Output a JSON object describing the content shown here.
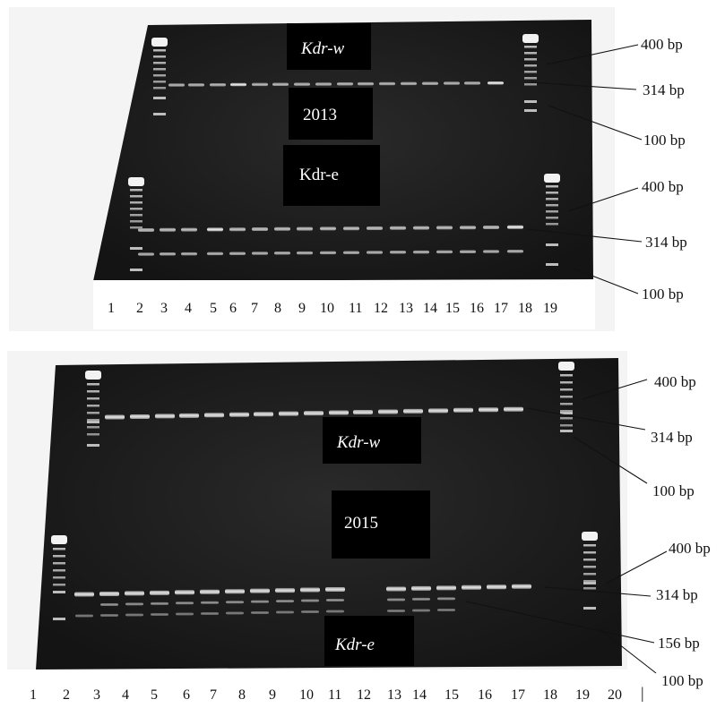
{
  "panels": [
    {
      "id": "panel-2013",
      "year": "2013",
      "wild_label": {
        "prefix": "Kdr",
        "suffix": "-w"
      },
      "mut_label": {
        "prefix": "Kdr",
        "suffix": "-e"
      },
      "marker_labels": [
        "400 bp",
        "314 bp",
        "100 bp",
        "400 bp",
        "314 bp",
        "100 bp"
      ],
      "lane_numbers": [
        "1",
        "2",
        "3",
        "4",
        "5",
        "6",
        "7",
        "8",
        "9",
        "10",
        "11",
        "12",
        "13",
        "14",
        "15",
        "16",
        "17",
        "18",
        "19"
      ],
      "extra_mark": ""
    },
    {
      "id": "panel-2015",
      "year": "2015",
      "wild_label": {
        "prefix": "Kdr",
        "suffix": "-w"
      },
      "mut_label": {
        "prefix": "Kdr",
        "suffix": "-e"
      },
      "marker_labels": [
        "400 bp",
        "314 bp",
        "100 bp",
        "400 bp",
        "314 bp",
        "156 bp",
        "100 bp"
      ],
      "lane_numbers": [
        "1",
        "2",
        "3",
        "4",
        "5",
        "6",
        "7",
        "8",
        "9",
        "10",
        "11",
        "12",
        "13",
        "14",
        "15",
        "16",
        "17",
        "18",
        "19",
        "20"
      ],
      "extra_mark": "|"
    }
  ],
  "colors": {
    "gel": "#1a1a1a",
    "band": "#d8d8d8",
    "ladder": "#cfcfcf",
    "label_box": "#000000"
  }
}
